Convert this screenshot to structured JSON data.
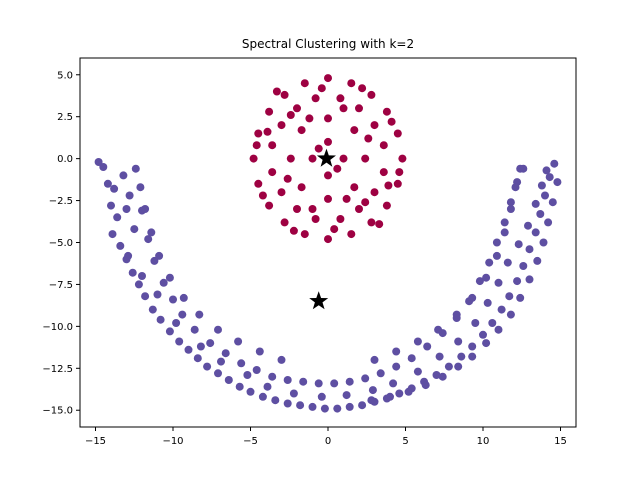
{
  "chart_data": {
    "type": "scatter",
    "title": "Spectral Clustering with k=2",
    "xlabel": "",
    "ylabel": "",
    "xlim": [
      -16.0,
      16.0
    ],
    "ylim": [
      -16.0,
      6.0
    ],
    "x_ticks": [
      -15,
      -10,
      -5,
      0,
      5,
      10,
      15
    ],
    "y_ticks": [
      5.0,
      2.5,
      0.0,
      -2.5,
      -5.0,
      -7.5,
      -10.0,
      -12.5,
      -15.0
    ],
    "y_tick_labels": [
      "5.0",
      "2.5",
      "0.0",
      "−2.5",
      "−5.0",
      "−7.5",
      "−10.0",
      "−12.5",
      "−15.0"
    ],
    "x_tick_labels": [
      "−15",
      "−10",
      "−5",
      "0",
      "5",
      "10",
      "15"
    ],
    "grid": false,
    "series": [
      {
        "cluster": 0,
        "color": "#5e4fa2",
        "points": [
          [
            -14.5,
            -0.5
          ],
          [
            -14.2,
            -1.5
          ],
          [
            -14.0,
            -2.8
          ],
          [
            -13.6,
            -3.5
          ],
          [
            -13.9,
            -4.5
          ],
          [
            -13.4,
            -5.2
          ],
          [
            -13.0,
            -6.0
          ],
          [
            -12.6,
            -6.8
          ],
          [
            -12.2,
            -7.5
          ],
          [
            -11.8,
            -8.2
          ],
          [
            -11.3,
            -9.0
          ],
          [
            -10.8,
            -9.6
          ],
          [
            -10.2,
            -10.3
          ],
          [
            -9.6,
            -10.9
          ],
          [
            -9.0,
            -11.4
          ],
          [
            -8.4,
            -11.9
          ],
          [
            -7.8,
            -12.4
          ],
          [
            -7.1,
            -12.8
          ],
          [
            -6.4,
            -13.2
          ],
          [
            -5.7,
            -13.6
          ],
          [
            -5.0,
            -13.9
          ],
          [
            -4.2,
            -14.2
          ],
          [
            -3.4,
            -14.4
          ],
          [
            -2.6,
            -14.6
          ],
          [
            -1.8,
            -14.7
          ],
          [
            -1.0,
            -14.8
          ],
          [
            -0.2,
            -14.9
          ],
          [
            0.6,
            -14.9
          ],
          [
            1.4,
            -14.8
          ],
          [
            2.2,
            -14.7
          ],
          [
            3.0,
            -14.5
          ],
          [
            3.8,
            -14.3
          ],
          [
            4.6,
            -14.0
          ],
          [
            5.4,
            -13.7
          ],
          [
            6.2,
            -13.3
          ],
          [
            7.0,
            -12.9
          ],
          [
            7.8,
            -12.4
          ],
          [
            8.6,
            -11.8
          ],
          [
            9.3,
            -11.2
          ],
          [
            10.0,
            -10.5
          ],
          [
            10.6,
            -9.8
          ],
          [
            11.2,
            -9.0
          ],
          [
            11.7,
            -8.2
          ],
          [
            12.2,
            -7.3
          ],
          [
            12.6,
            -6.4
          ],
          [
            13.0,
            -5.4
          ],
          [
            13.4,
            -4.4
          ],
          [
            13.7,
            -3.3
          ],
          [
            14.0,
            -2.2
          ],
          [
            14.3,
            -1.1
          ],
          [
            14.6,
            -0.3
          ],
          [
            -14.8,
            -0.2
          ],
          [
            -13.2,
            -1.0
          ],
          [
            -12.8,
            -2.2
          ],
          [
            -12.0,
            -3.1
          ],
          [
            -11.6,
            -4.8
          ],
          [
            -11.2,
            -6.1
          ],
          [
            -10.6,
            -7.4
          ],
          [
            -10.0,
            -8.4
          ],
          [
            -9.4,
            -9.3
          ],
          [
            -8.6,
            -10.2
          ],
          [
            -7.6,
            -11.0
          ],
          [
            -6.6,
            -11.6
          ],
          [
            -5.6,
            -12.2
          ],
          [
            -4.6,
            -12.6
          ],
          [
            -3.6,
            -13.0
          ],
          [
            -2.6,
            -13.2
          ],
          [
            -1.6,
            -13.3
          ],
          [
            -0.6,
            -13.4
          ],
          [
            0.4,
            -13.4
          ],
          [
            1.4,
            -13.3
          ],
          [
            2.4,
            -13.1
          ],
          [
            3.4,
            -12.8
          ],
          [
            4.4,
            -12.4
          ],
          [
            5.4,
            -11.9
          ],
          [
            6.4,
            -11.2
          ],
          [
            7.4,
            -10.4
          ],
          [
            8.3,
            -9.5
          ],
          [
            9.1,
            -8.5
          ],
          [
            9.8,
            -7.3
          ],
          [
            10.4,
            -6.2
          ],
          [
            10.9,
            -5.0
          ],
          [
            11.4,
            -3.8
          ],
          [
            11.8,
            -2.6
          ],
          [
            12.2,
            -1.4
          ],
          [
            12.6,
            -0.6
          ],
          [
            -13.8,
            -1.8
          ],
          [
            -13.0,
            -3.0
          ],
          [
            -12.5,
            -4.2
          ],
          [
            -12.9,
            -5.8
          ],
          [
            -12.0,
            -7.0
          ],
          [
            -11.0,
            -8.1
          ],
          [
            -9.8,
            -9.8
          ],
          [
            -8.2,
            -11.2
          ],
          [
            -6.9,
            -12.1
          ],
          [
            -5.2,
            -12.9
          ],
          [
            -3.9,
            -13.6
          ],
          [
            -2.2,
            -14.0
          ],
          [
            -0.4,
            -14.2
          ],
          [
            1.2,
            -14.1
          ],
          [
            2.9,
            -13.8
          ],
          [
            4.2,
            -13.4
          ],
          [
            5.8,
            -12.7
          ],
          [
            7.2,
            -11.8
          ],
          [
            8.4,
            -10.9
          ],
          [
            9.5,
            -9.8
          ],
          [
            10.3,
            -8.6
          ],
          [
            11.0,
            -7.4
          ],
          [
            11.6,
            -6.2
          ],
          [
            12.3,
            -5.1
          ],
          [
            12.9,
            -4.0
          ],
          [
            13.4,
            -2.7
          ],
          [
            13.8,
            -1.6
          ],
          [
            14.1,
            -0.7
          ],
          [
            14.8,
            -1.4
          ],
          [
            14.5,
            -2.6
          ],
          [
            14.2,
            -3.8
          ],
          [
            13.9,
            -5.0
          ],
          [
            13.5,
            -6.1
          ],
          [
            13.0,
            -7.2
          ],
          [
            12.4,
            -8.3
          ],
          [
            11.8,
            -9.3
          ],
          [
            11.0,
            -10.2
          ],
          [
            10.2,
            -11.0
          ],
          [
            9.3,
            -11.8
          ],
          [
            8.4,
            -12.4
          ],
          [
            7.4,
            -13.0
          ],
          [
            6.3,
            -13.5
          ],
          [
            5.2,
            -13.9
          ],
          [
            4.0,
            -14.2
          ],
          [
            2.8,
            -14.4
          ],
          [
            -3.0,
            -12.0
          ],
          [
            -4.4,
            -11.5
          ],
          [
            -5.8,
            -10.9
          ],
          [
            -7.1,
            -10.2
          ],
          [
            -8.3,
            -9.3
          ],
          [
            -9.3,
            -8.3
          ],
          [
            -10.2,
            -7.1
          ],
          [
            -10.9,
            -5.8
          ],
          [
            -11.4,
            -4.4
          ],
          [
            -11.8,
            -3.0
          ],
          [
            -12.1,
            -1.7
          ],
          [
            -12.4,
            -0.6
          ],
          [
            3.0,
            -12.0
          ],
          [
            4.4,
            -11.5
          ],
          [
            5.8,
            -10.9
          ],
          [
            7.1,
            -10.2
          ],
          [
            8.3,
            -9.3
          ],
          [
            9.3,
            -8.3
          ],
          [
            10.2,
            -7.1
          ],
          [
            10.9,
            -5.8
          ],
          [
            11.4,
            -4.4
          ],
          [
            11.8,
            -3.0
          ],
          [
            12.1,
            -1.7
          ],
          [
            12.4,
            -0.6
          ]
        ]
      },
      {
        "cluster": 1,
        "color": "#9e0142",
        "points": [
          [
            0.0,
            4.8
          ],
          [
            -1.5,
            4.5
          ],
          [
            1.5,
            4.5
          ],
          [
            -2.8,
            3.8
          ],
          [
            2.8,
            3.8
          ],
          [
            -3.8,
            2.8
          ],
          [
            3.8,
            2.8
          ],
          [
            -4.5,
            1.5
          ],
          [
            4.5,
            1.5
          ],
          [
            -4.8,
            0.0
          ],
          [
            4.8,
            0.0
          ],
          [
            -4.5,
            -1.5
          ],
          [
            4.5,
            -1.5
          ],
          [
            -3.8,
            -2.8
          ],
          [
            3.8,
            -2.8
          ],
          [
            -2.8,
            -3.8
          ],
          [
            2.8,
            -3.8
          ],
          [
            -1.5,
            -4.5
          ],
          [
            1.5,
            -4.5
          ],
          [
            0.0,
            -4.8
          ],
          [
            -0.8,
            3.6
          ],
          [
            0.8,
            3.6
          ],
          [
            -2.0,
            3.0
          ],
          [
            2.0,
            3.0
          ],
          [
            -3.0,
            2.0
          ],
          [
            3.0,
            2.0
          ],
          [
            -3.6,
            0.8
          ],
          [
            3.6,
            0.8
          ],
          [
            -3.6,
            -0.8
          ],
          [
            3.6,
            -0.8
          ],
          [
            -3.0,
            -2.0
          ],
          [
            3.0,
            -2.0
          ],
          [
            -2.0,
            -3.0
          ],
          [
            2.0,
            -3.0
          ],
          [
            -0.8,
            -3.6
          ],
          [
            0.8,
            -3.6
          ],
          [
            0.0,
            2.4
          ],
          [
            -1.7,
            1.7
          ],
          [
            1.7,
            1.7
          ],
          [
            -2.4,
            0.0
          ],
          [
            2.4,
            0.0
          ],
          [
            -1.7,
            -1.7
          ],
          [
            1.7,
            -1.7
          ],
          [
            0.0,
            -2.4
          ],
          [
            0.0,
            1.0
          ],
          [
            -1.0,
            0.0
          ],
          [
            1.0,
            0.0
          ],
          [
            0.0,
            -1.0
          ],
          [
            -0.6,
            0.6
          ],
          [
            0.6,
            -0.6
          ],
          [
            -3.3,
            4.0
          ],
          [
            3.3,
            -3.9
          ],
          [
            -4.2,
            -2.2
          ],
          [
            4.1,
            2.2
          ],
          [
            -2.2,
            -4.3
          ],
          [
            2.2,
            4.2
          ],
          [
            -1.2,
            2.4
          ],
          [
            1.2,
            -2.4
          ],
          [
            -2.6,
            -1.2
          ],
          [
            2.6,
            1.2
          ],
          [
            -3.9,
            1.6
          ],
          [
            3.9,
            -1.6
          ],
          [
            -0.4,
            4.2
          ],
          [
            0.4,
            -4.2
          ],
          [
            -4.6,
            0.8
          ],
          [
            4.6,
            -0.8
          ],
          [
            -1.0,
            -3.0
          ],
          [
            1.0,
            3.0
          ],
          [
            -2.4,
            2.6
          ],
          [
            2.4,
            -2.6
          ]
        ]
      }
    ],
    "centroids": {
      "color": "#000000",
      "marker": "star",
      "points": [
        [
          -0.1,
          0.0
        ],
        [
          -0.6,
          -8.5
        ]
      ]
    }
  }
}
